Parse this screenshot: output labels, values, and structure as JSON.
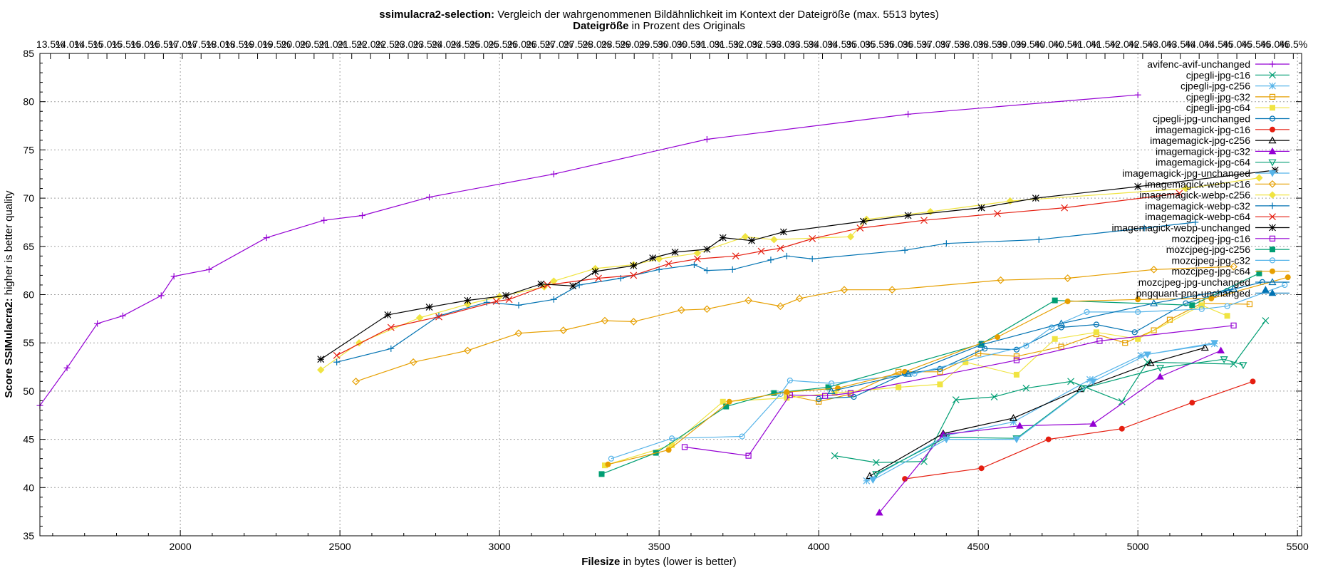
{
  "chart_data": {
    "type": "line",
    "title_bold": "ssimulacra2-selection:",
    "title_rest": " Vergleich der wahrgenommenen Bildähnlichkeit im Kontext der Dateigröße (max. 5513 bytes)",
    "subtitle_bold": "Dateigröße",
    "subtitle_rest": " in Prozent des Originals",
    "xlabel_bold": "Filesize",
    "xlabel_rest": " in bytes (lower is better)",
    "ylabel_bold": "Score SSIMulacra2:",
    "ylabel_rest": " higher is better quality",
    "xlim": [
      1560,
      5513
    ],
    "ylim": [
      35,
      85
    ],
    "x_ticks": [
      "2000",
      "2500",
      "3000",
      "3500",
      "4000",
      "4500",
      "5000",
      "5500"
    ],
    "y_ticks": [
      "35",
      "40",
      "45",
      "50",
      "55",
      "60",
      "65",
      "70",
      "75",
      "80",
      "85"
    ],
    "top_ticks": [
      "13.5%",
      "14.0%",
      "14.5%",
      "15.0%",
      "15.5%",
      "16.0%",
      "16.5%",
      "17.0%",
      "17.5%",
      "18.0%",
      "18.5%",
      "19.0%",
      "19.5%",
      "20.0%",
      "20.5%",
      "21.0%",
      "21.5%",
      "22.0%",
      "22.5%",
      "23.0%",
      "23.5%",
      "24.0%",
      "24.5%",
      "25.0%",
      "25.5%",
      "26.0%",
      "26.5%",
      "27.0%",
      "27.5%",
      "28.0%",
      "28.5%",
      "29.0%",
      "29.5%",
      "30.0%",
      "30.5%",
      "31.0%",
      "31.5%",
      "32.0%",
      "32.5%",
      "33.0%",
      "33.5%",
      "34.0%",
      "34.5%",
      "35.0%",
      "35.5%",
      "36.0%",
      "36.5%",
      "37.0%",
      "37.5%",
      "38.0%",
      "38.5%",
      "39.0%",
      "39.5%",
      "40.0%",
      "40.5%",
      "41.0%",
      "41.5%",
      "42.0%",
      "42.5%",
      "43.0%",
      "43.5%",
      "44.0%",
      "44.5%",
      "45.0%",
      "45.5%",
      "46.0%",
      "46.5%"
    ],
    "grid": true,
    "legend_position": "top-right",
    "series": [
      {
        "name": "avifenc-avif-unchanged",
        "color": "#9400d3",
        "marker": "plus",
        "points": [
          [
            1560,
            48.5
          ],
          [
            1645,
            52.4
          ],
          [
            1740,
            57
          ],
          [
            1820,
            57.8
          ],
          [
            1940,
            59.9
          ],
          [
            1980,
            61.9
          ],
          [
            2090,
            62.6
          ],
          [
            2270,
            65.9
          ],
          [
            2450,
            67.7
          ],
          [
            2570,
            68.2
          ],
          [
            2780,
            70.1
          ],
          [
            3170,
            72.5
          ],
          [
            3650,
            76.1
          ],
          [
            4280,
            78.7
          ],
          [
            5000,
            80.7
          ]
        ]
      },
      {
        "name": "cjpegli-jpg-c16",
        "color": "#009e73",
        "marker": "x",
        "points": [
          [
            4050,
            43.3
          ],
          [
            4180,
            42.6
          ],
          [
            4330,
            42.7
          ],
          [
            4430,
            49.1
          ],
          [
            4550,
            49.4
          ],
          [
            4650,
            50.3
          ],
          [
            4790,
            51
          ],
          [
            4950,
            48.9
          ],
          [
            5030,
            53
          ],
          [
            5300,
            52.8
          ],
          [
            5400,
            57.3
          ]
        ]
      },
      {
        "name": "cjpegli-jpg-c256",
        "color": "#56b4e9",
        "marker": "star",
        "points": [
          [
            4150,
            40.7
          ],
          [
            4400,
            45.4
          ],
          [
            4610,
            46.8
          ],
          [
            4850,
            51.2
          ],
          [
            5010,
            53.7
          ],
          [
            5240,
            54.9
          ]
        ]
      },
      {
        "name": "cjpegli-jpg-c32",
        "color": "#e69f00",
        "marker": "square",
        "points": [
          [
            3900,
            49.6
          ],
          [
            4000,
            48.9
          ],
          [
            4100,
            49.7
          ],
          [
            4250,
            52
          ],
          [
            4380,
            52
          ],
          [
            4500,
            53.9
          ],
          [
            4620,
            53.6
          ],
          [
            4760,
            54.6
          ],
          [
            4870,
            55.9
          ],
          [
            4960,
            55
          ],
          [
            5050,
            56.3
          ],
          [
            5100,
            57.4
          ],
          [
            5200,
            59.1
          ],
          [
            5350,
            59
          ]
        ]
      },
      {
        "name": "cjpegli-jpg-c64",
        "color": "#f0e442",
        "marker": "fillsquare",
        "points": [
          [
            3330,
            42.3
          ],
          [
            3540,
            44.4
          ],
          [
            3700,
            48.9
          ],
          [
            3900,
            49.3
          ],
          [
            4050,
            49.8
          ],
          [
            4250,
            50.4
          ],
          [
            4380,
            50.7
          ],
          [
            4460,
            53
          ],
          [
            4620,
            51.7
          ],
          [
            4740,
            55.4
          ],
          [
            4870,
            56.1
          ],
          [
            5000,
            55.4
          ],
          [
            5200,
            58.9
          ],
          [
            5280,
            57.8
          ]
        ]
      },
      {
        "name": "cjpegli-jpg-unchanged",
        "color": "#0072b2",
        "marker": "circle",
        "points": [
          [
            4000,
            49.2
          ],
          [
            4110,
            49.4
          ],
          [
            4270,
            51.8
          ],
          [
            4380,
            52.3
          ],
          [
            4520,
            54.4
          ],
          [
            4620,
            54.3
          ],
          [
            4760,
            56.6
          ],
          [
            4870,
            56.9
          ],
          [
            4990,
            56.1
          ],
          [
            5150,
            59.1
          ],
          [
            5280,
            60.4
          ],
          [
            5390,
            61.3
          ]
        ]
      },
      {
        "name": "imagemagick-jpg-c16",
        "color": "#e51e10",
        "marker": "fillcircle",
        "points": [
          [
            4270,
            40.9
          ],
          [
            4510,
            42
          ],
          [
            4720,
            45
          ],
          [
            4950,
            46.1
          ],
          [
            5170,
            48.8
          ],
          [
            5360,
            51
          ]
        ]
      },
      {
        "name": "imagemagick-jpg-c256",
        "color": "#000000",
        "marker": "triangle",
        "points": [
          [
            4160,
            41.2
          ],
          [
            4390,
            45.6
          ],
          [
            4610,
            47.2
          ],
          [
            4820,
            50.2
          ],
          [
            5040,
            52.9
          ],
          [
            5210,
            54.5
          ]
        ]
      },
      {
        "name": "imagemagick-jpg-c32",
        "color": "#9400d3",
        "marker": "filltriangle",
        "points": [
          [
            4190,
            37.4
          ],
          [
            4390,
            45.5
          ],
          [
            4630,
            46.4
          ],
          [
            4860,
            46.6
          ],
          [
            5070,
            51.5
          ],
          [
            5260,
            54.2
          ]
        ]
      },
      {
        "name": "imagemagick-jpg-c64",
        "color": "#009e73",
        "marker": "invtriangle",
        "points": [
          [
            4180,
            41.4
          ],
          [
            4400,
            45.2
          ],
          [
            4620,
            45.1
          ],
          [
            4830,
            50.3
          ],
          [
            5070,
            52.4
          ],
          [
            5270,
            53.3
          ],
          [
            5330,
            52.7
          ]
        ]
      },
      {
        "name": "imagemagick-jpg-unchanged",
        "color": "#56b4e9",
        "marker": "fillinvtriangle",
        "points": [
          [
            4170,
            40.8
          ],
          [
            4400,
            45
          ],
          [
            4620,
            45
          ],
          [
            4860,
            51
          ],
          [
            5030,
            53.8
          ],
          [
            5240,
            55
          ]
        ]
      },
      {
        "name": "imagemagick-webp-c16",
        "color": "#e69f00",
        "marker": "diamond",
        "points": [
          [
            2550,
            51
          ],
          [
            2730,
            53
          ],
          [
            2900,
            54.2
          ],
          [
            3060,
            56
          ],
          [
            3200,
            56.3
          ],
          [
            3330,
            57.3
          ],
          [
            3420,
            57.2
          ],
          [
            3570,
            58.4
          ],
          [
            3650,
            58.5
          ],
          [
            3780,
            59.4
          ],
          [
            3880,
            58.8
          ],
          [
            3940,
            59.6
          ],
          [
            4080,
            60.5
          ],
          [
            4230,
            60.5
          ],
          [
            4570,
            61.5
          ],
          [
            4780,
            61.7
          ],
          [
            5050,
            62.6
          ],
          [
            5300,
            62.9
          ]
        ]
      },
      {
        "name": "imagemagick-webp-c256",
        "color": "#f0e442",
        "marker": "filldiamond",
        "points": [
          [
            2440,
            52.2
          ],
          [
            2560,
            55
          ],
          [
            2750,
            57.6
          ],
          [
            2900,
            59
          ],
          [
            3000,
            59.8
          ],
          [
            3140,
            60.8
          ],
          [
            3170,
            61.4
          ],
          [
            3300,
            62.7
          ],
          [
            3420,
            63.1
          ],
          [
            3500,
            63.7
          ],
          [
            3620,
            64.3
          ],
          [
            3770,
            66
          ],
          [
            3860,
            65.7
          ],
          [
            4100,
            66
          ],
          [
            4150,
            67.8
          ],
          [
            4350,
            68.6
          ],
          [
            4600,
            69.7
          ],
          [
            5150,
            71
          ],
          [
            5380,
            72.1
          ]
        ]
      },
      {
        "name": "imagemagick-webp-c32",
        "color": "#0072b2",
        "marker": "plus",
        "points": [
          [
            2490,
            53
          ],
          [
            2660,
            54.4
          ],
          [
            2810,
            57.8
          ],
          [
            2960,
            59.2
          ],
          [
            3060,
            58.9
          ],
          [
            3170,
            59.5
          ],
          [
            3250,
            61
          ],
          [
            3380,
            61.7
          ],
          [
            3500,
            62.6
          ],
          [
            3610,
            63.1
          ],
          [
            3650,
            62.5
          ],
          [
            3730,
            62.6
          ],
          [
            3850,
            63.6
          ],
          [
            3900,
            64
          ],
          [
            3980,
            63.7
          ],
          [
            4270,
            64.6
          ],
          [
            4400,
            65.3
          ],
          [
            4690,
            65.7
          ],
          [
            5020,
            66.9
          ],
          [
            5180,
            67.5
          ]
        ]
      },
      {
        "name": "imagemagick-webp-c64",
        "color": "#e51e10",
        "marker": "x",
        "points": [
          [
            2490,
            53.7
          ],
          [
            2660,
            56.6
          ],
          [
            2810,
            57.7
          ],
          [
            2990,
            59.3
          ],
          [
            3030,
            59.5
          ],
          [
            3150,
            61
          ],
          [
            3310,
            61.7
          ],
          [
            3420,
            62
          ],
          [
            3530,
            63.2
          ],
          [
            3620,
            63.7
          ],
          [
            3740,
            64
          ],
          [
            3820,
            64.5
          ],
          [
            3880,
            64.8
          ],
          [
            3980,
            65.8
          ],
          [
            4130,
            66.9
          ],
          [
            4330,
            67.7
          ],
          [
            4560,
            68.4
          ],
          [
            4770,
            69
          ],
          [
            5130,
            70.5
          ]
        ]
      },
      {
        "name": "imagemagick-webp-unchanged",
        "color": "#000000",
        "marker": "star",
        "points": [
          [
            2440,
            53.3
          ],
          [
            2650,
            57.9
          ],
          [
            2780,
            58.7
          ],
          [
            2900,
            59.4
          ],
          [
            3020,
            59.9
          ],
          [
            3130,
            61.1
          ],
          [
            3230,
            60.9
          ],
          [
            3300,
            62.4
          ],
          [
            3420,
            63
          ],
          [
            3480,
            63.8
          ],
          [
            3550,
            64.4
          ],
          [
            3650,
            64.7
          ],
          [
            3700,
            65.9
          ],
          [
            3790,
            65.6
          ],
          [
            3890,
            66.5
          ],
          [
            4140,
            67.6
          ],
          [
            4280,
            68.2
          ],
          [
            4510,
            69
          ],
          [
            4680,
            70
          ],
          [
            5000,
            71.2
          ],
          [
            5430,
            72.9
          ]
        ]
      },
      {
        "name": "mozcjpeg-jpg-c16",
        "color": "#9400d3",
        "marker": "square",
        "points": [
          [
            3580,
            44.2
          ],
          [
            3780,
            43.3
          ],
          [
            3910,
            49.6
          ],
          [
            4020,
            49.5
          ],
          [
            4100,
            49.8
          ],
          [
            4620,
            53.2
          ],
          [
            4880,
            55.2
          ],
          [
            5300,
            56.8
          ]
        ]
      },
      {
        "name": "mozcjpeg-jpg-c256",
        "color": "#009e73",
        "marker": "fillsquare",
        "points": [
          [
            3320,
            41.4
          ],
          [
            3490,
            43.6
          ],
          [
            3710,
            48.4
          ],
          [
            3860,
            49.8
          ],
          [
            4030,
            50.4
          ],
          [
            4510,
            54.9
          ],
          [
            4740,
            59.4
          ],
          [
            5170,
            58.9
          ],
          [
            5380,
            62.2
          ]
        ]
      },
      {
        "name": "mozcjpeg-jpg-c32",
        "color": "#56b4e9",
        "marker": "circle",
        "points": [
          [
            3350,
            43
          ],
          [
            3540,
            45.1
          ],
          [
            3760,
            45.3
          ],
          [
            3880,
            49.7
          ],
          [
            3910,
            51.1
          ],
          [
            4040,
            50.8
          ],
          [
            4300,
            51.8
          ],
          [
            4650,
            54.7
          ],
          [
            4730,
            56.6
          ],
          [
            4840,
            58.2
          ],
          [
            5000,
            58.2
          ],
          [
            5200,
            58.5
          ],
          [
            5280,
            58.8
          ],
          [
            5460,
            61
          ]
        ]
      },
      {
        "name": "mozcjpeg-jpg-c64",
        "color": "#e69f00",
        "marker": "fillcircle",
        "points": [
          [
            3340,
            42.4
          ],
          [
            3530,
            43.9
          ],
          [
            3720,
            48.9
          ],
          [
            3900,
            49.9
          ],
          [
            4060,
            50.3
          ],
          [
            4270,
            52
          ],
          [
            4560,
            55.6
          ],
          [
            4780,
            59.3
          ],
          [
            5000,
            59.5
          ],
          [
            5230,
            59.6
          ],
          [
            5470,
            61.8
          ]
        ]
      },
      {
        "name": "mozcjpeg-jpg-unchanged",
        "color": "#0072b2",
        "marker": "triangle",
        "points": [
          [
            4040,
            50
          ],
          [
            4280,
            51.8
          ],
          [
            4510,
            54.8
          ],
          [
            4760,
            57
          ],
          [
            5050,
            59.1
          ],
          [
            5300,
            60.6
          ]
        ]
      },
      {
        "name": "pngquant-png-unchanged",
        "color": "#0072b2",
        "marker": "filltriangle",
        "points": [
          [
            5400,
            60.5
          ]
        ]
      }
    ]
  }
}
